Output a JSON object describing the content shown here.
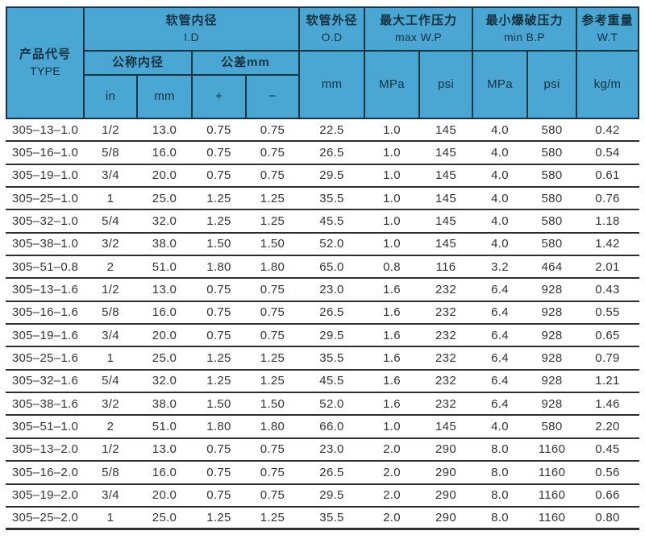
{
  "colors": {
    "header_bg": "#4aa6d2",
    "header_grid": "#173641",
    "header_text": "#14313e",
    "row_line": "#2e2e2e",
    "body_text": "#333333"
  },
  "table": {
    "header": {
      "type_zh": "产品代号",
      "type_en": "TYPE",
      "id_zh": "软管内径",
      "id_en": "I.D",
      "nominal": "公称内径",
      "tolerance": "公差mm",
      "in": "in",
      "mm": "mm",
      "plus": "+",
      "minus": "−",
      "od_zh": "软管外径",
      "od_en": "O.D",
      "od_unit": "mm",
      "wp_zh": "最大工作压力",
      "wp_en": "max W.P",
      "bp_zh": "最小爆破压力",
      "bp_en": "min B.P",
      "mpa": "MPa",
      "psi": "psi",
      "wt_zh": "参考重量",
      "wt_en": "W.T",
      "wt_unit": "kg/m"
    },
    "rows": [
      [
        "305–13–1.0",
        "1/2",
        "13.0",
        "0.75",
        "0.75",
        "22.5",
        "1.0",
        "145",
        "4.0",
        "580",
        "0.42"
      ],
      [
        "305–16–1.0",
        "5/8",
        "16.0",
        "0.75",
        "0.75",
        "26.5",
        "1.0",
        "145",
        "4.0",
        "580",
        "0.54"
      ],
      [
        "305–19–1.0",
        "3/4",
        "20.0",
        "0.75",
        "0.75",
        "29.5",
        "1.0",
        "145",
        "4.0",
        "580",
        "0.61"
      ],
      [
        "305–25–1.0",
        "1",
        "25.0",
        "1.25",
        "1.25",
        "35.5",
        "1.0",
        "145",
        "4.0",
        "580",
        "0.76"
      ],
      [
        "305–32–1.0",
        "5/4",
        "32.0",
        "1.25",
        "1.25",
        "45.5",
        "1.0",
        "145",
        "4.0",
        "580",
        "1.18"
      ],
      [
        "305–38–1.0",
        "3/2",
        "38.0",
        "1.50",
        "1.50",
        "52.0",
        "1.0",
        "145",
        "4.0",
        "580",
        "1.42"
      ],
      [
        "305–51–0.8",
        "2",
        "51.0",
        "1.80",
        "1.80",
        "65.0",
        "0.8",
        "116",
        "3.2",
        "464",
        "2.01"
      ],
      [
        "305–13–1.6",
        "1/2",
        "13.0",
        "0.75",
        "0.75",
        "23.0",
        "1.6",
        "232",
        "6.4",
        "928",
        "0.43"
      ],
      [
        "305–16–1.6",
        "5/8",
        "16.0",
        "0.75",
        "0.75",
        "26.5",
        "1.6",
        "232",
        "6.4",
        "928",
        "0.55"
      ],
      [
        "305–19–1.6",
        "3/4",
        "20.0",
        "0.75",
        "0.75",
        "29.5",
        "1.6",
        "232",
        "6.4",
        "928",
        "0.65"
      ],
      [
        "305–25–1.6",
        "1",
        "25.0",
        "1.25",
        "1.25",
        "35.5",
        "1.6",
        "232",
        "6.4",
        "928",
        "0.79"
      ],
      [
        "305–32–1.6",
        "5/4",
        "32.0",
        "1.25",
        "1.25",
        "45.5",
        "1.6",
        "232",
        "6.4",
        "928",
        "1.21"
      ],
      [
        "305–38–1.6",
        "3/2",
        "38.0",
        "1.50",
        "1.50",
        "52.0",
        "1.6",
        "232",
        "6.4",
        "928",
        "1.46"
      ],
      [
        "305–51–1.0",
        "2",
        "51.0",
        "1.80",
        "1.80",
        "66.0",
        "1.0",
        "145",
        "4.0",
        "580",
        "2.20"
      ],
      [
        "305–13–2.0",
        "1/2",
        "13.0",
        "0.75",
        "0.75",
        "23.0",
        "2.0",
        "290",
        "8.0",
        "1160",
        "0.45"
      ],
      [
        "305–16–2.0",
        "5/8",
        "16.0",
        "0.75",
        "0.75",
        "26.5",
        "2.0",
        "290",
        "8.0",
        "1160",
        "0.56"
      ],
      [
        "305–19–2.0",
        "3/4",
        "20.0",
        "0.75",
        "0.75",
        "29.5",
        "2.0",
        "290",
        "8.0",
        "1160",
        "0.66"
      ],
      [
        "305–25–2.0",
        "1",
        "25.0",
        "1.25",
        "1.25",
        "35.5",
        "2.0",
        "290",
        "8.0",
        "1160",
        "0.80"
      ]
    ]
  }
}
